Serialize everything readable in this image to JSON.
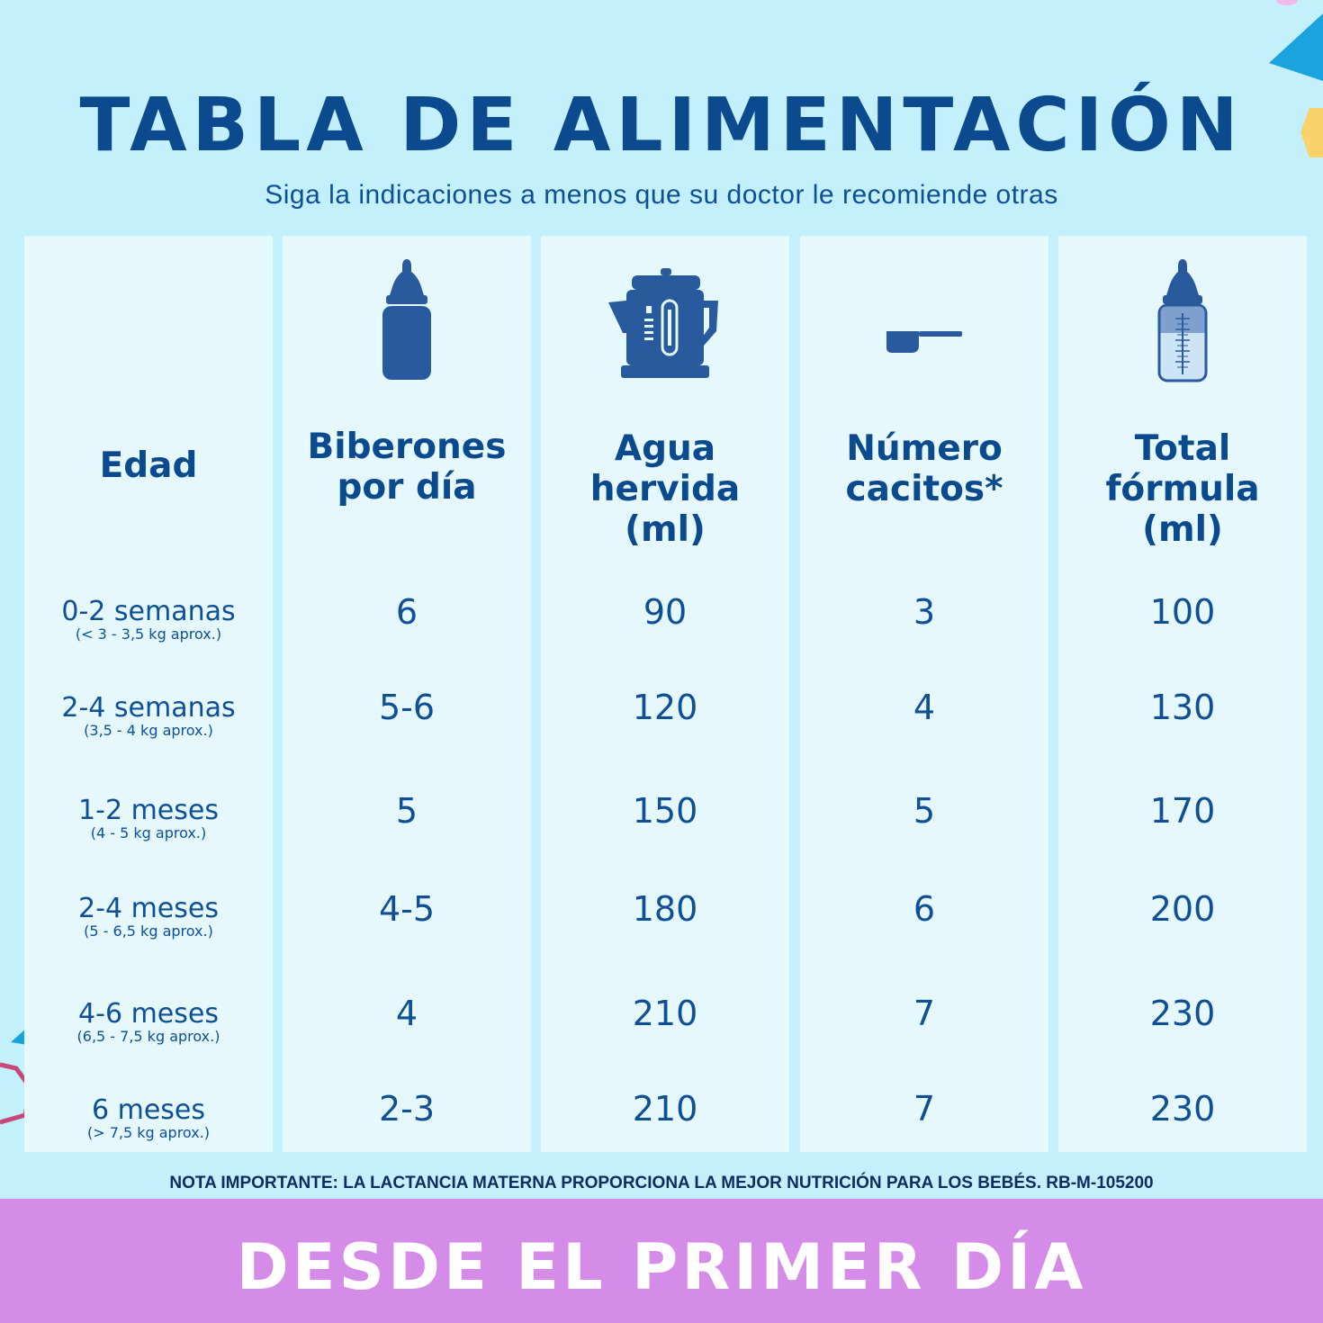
{
  "title": "TABLA DE ALIMENTACIÓN",
  "subtitle": "Siga la indicaciones a menos que su doctor le recomiende otras",
  "columns": [
    {
      "header": "Edad",
      "icon": ""
    },
    {
      "header_lines": [
        "Biberones",
        "por día"
      ],
      "icon": "baby-bottle-icon"
    },
    {
      "header_lines": [
        "Agua",
        "hervida",
        "(ml)"
      ],
      "icon": "kettle-icon"
    },
    {
      "header_lines": [
        "Número",
        "cacitos*"
      ],
      "icon": "scoop-icon"
    },
    {
      "header_lines": [
        "Total",
        "fórmula",
        "(ml)"
      ],
      "icon": "measuring-bottle-icon"
    }
  ],
  "rows": [
    {
      "age": "0-2 semanas",
      "weight": "(< 3 - 3,5 kg aprox.)",
      "bottles": "6",
      "water": "90",
      "scoops": "3",
      "total": "100"
    },
    {
      "age": "2-4 semanas",
      "weight": "(3,5 - 4 kg aprox.)",
      "bottles": "5-6",
      "water": "120",
      "scoops": "4",
      "total": "130"
    },
    {
      "age": "1-2 meses",
      "weight": "(4 - 5  kg aprox.)",
      "bottles": "5",
      "water": "150",
      "scoops": "5",
      "total": "170"
    },
    {
      "age": "2-4 meses",
      "weight": "(5 - 6,5 kg aprox.)",
      "bottles": "4-5",
      "water": "180",
      "scoops": "6",
      "total": "200"
    },
    {
      "age": "4-6 meses",
      "weight": "(6,5 - 7,5 kg aprox.)",
      "bottles": "4",
      "water": "210",
      "scoops": "7",
      "total": "230"
    },
    {
      "age": "6 meses",
      "weight": "(> 7,5 kg aprox.)",
      "bottles": "2-3",
      "water": "210",
      "scoops": "7",
      "total": "230"
    }
  ],
  "note": "NOTA IMPORTANTE: LA LACTANCIA MATERNA PROPORCIONA LA MEJOR NUTRICIÓN PARA LOS BEBÉS. RB-M-105200",
  "banner": "DESDE EL PRIMER DÍA",
  "colors": {
    "background": "#c4effd",
    "column": "#e4f8fe",
    "text": "#0b4a8f",
    "banner": "#d58be8"
  }
}
